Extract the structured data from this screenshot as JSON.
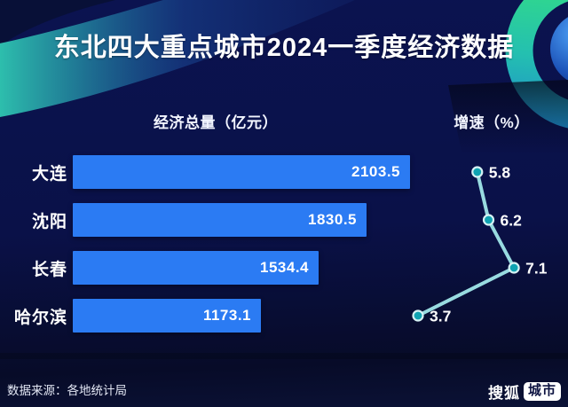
{
  "page": {
    "title": "东北四大重点城市2024一季度经济数据",
    "left_section_header": "经济总量（亿元）",
    "right_section_header": "增速（%）",
    "footer_source": "数据来源：各地统计局",
    "brand_name": "搜狐",
    "brand_badge": "城市"
  },
  "colors": {
    "background_top": "#0B1350",
    "background_bottom": "#070B28",
    "bar_blue": "#2B7BF3",
    "line_teal": "#98DBE0",
    "marker_fill": "#0FA3B2",
    "marker_stroke": "#D6F2F4",
    "ring_green": "#32DC86",
    "ring_cyan": "#1C86CF",
    "swoosh_teal": "#2FC7B2",
    "badge_bg": "#FFFFFF",
    "badge_text": "#0C1240",
    "text_white": "#FFFFFF"
  },
  "chart_data": {
    "type": "bar",
    "title": "东北四大重点城市2024一季度经济数据",
    "orientation": "horizontal",
    "categories": [
      "大连",
      "沈阳",
      "长春",
      "哈尔滨"
    ],
    "series": [
      {
        "name": "经济总量（亿元）",
        "type": "bar",
        "unit": "亿元",
        "values": [
          2103.5,
          1830.5,
          1534.4,
          1173.1
        ]
      },
      {
        "name": "增速（%）",
        "type": "line",
        "unit": "%",
        "values": [
          5.8,
          6.2,
          7.1,
          3.7
        ]
      }
    ],
    "value_labels": true,
    "grid": false,
    "legend": "none",
    "xlim_bar": [
      0,
      2103.5
    ],
    "source": "数据来源：各地统计局"
  }
}
